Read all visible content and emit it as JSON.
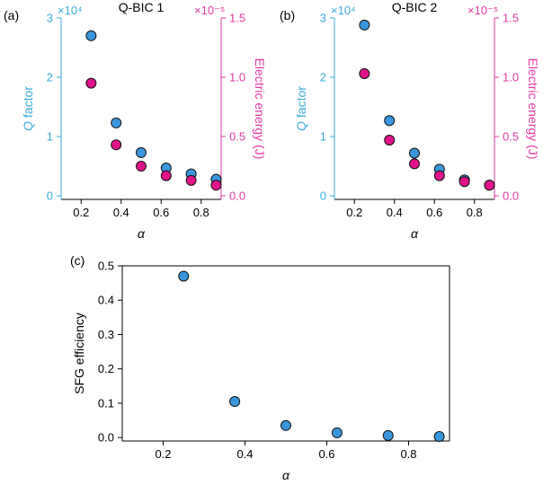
{
  "colors": {
    "q_axis": "#3aacdc",
    "q_marker": "#3a96dc",
    "e_axis": "#e23aa6",
    "e_marker": "#e0138a",
    "frame": "#000000"
  },
  "chart_data": [
    {
      "panel_label": "(a)",
      "type": "scatter",
      "title": "Q-BIC 1",
      "xlabel": "α",
      "xlim": [
        0.1,
        0.9
      ],
      "x_ticks": [
        0.2,
        0.4,
        0.6,
        0.8
      ],
      "x_tick_labels": [
        "0.2",
        "0.4",
        "0.6",
        "0.8"
      ],
      "left_axis": {
        "label_italic": "Q",
        "label_rest": " factor",
        "multiplier": "×10⁴",
        "ylim": [
          -0.06,
          3.0
        ],
        "ticks": [
          0,
          1,
          2,
          3
        ],
        "tick_labels": [
          "0",
          "1",
          "2",
          "3"
        ]
      },
      "right_axis": {
        "label": "Electric energy (J)",
        "multiplier": "×10⁻⁵",
        "ylim": [
          -0.03,
          1.5
        ],
        "ticks": [
          0.0,
          0.5,
          1.0,
          1.5
        ],
        "tick_labels": [
          "0.0",
          "0.5",
          "1.0",
          "1.5"
        ]
      },
      "series": [
        {
          "name": "Q factor",
          "axis": "left",
          "x": [
            0.25,
            0.375,
            0.5,
            0.625,
            0.75,
            0.875
          ],
          "y": [
            2.7,
            1.23,
            0.73,
            0.47,
            0.37,
            0.28
          ]
        },
        {
          "name": "Electric energy",
          "axis": "right",
          "x": [
            0.25,
            0.375,
            0.5,
            0.625,
            0.75,
            0.875
          ],
          "y": [
            0.95,
            0.43,
            0.25,
            0.17,
            0.13,
            0.09
          ]
        }
      ]
    },
    {
      "panel_label": "(b)",
      "type": "scatter",
      "title": "Q-BIC 2",
      "xlabel": "α",
      "xlim": [
        0.1,
        0.9
      ],
      "x_ticks": [
        0.2,
        0.4,
        0.6,
        0.8
      ],
      "x_tick_labels": [
        "0.2",
        "0.4",
        "0.6",
        "0.8"
      ],
      "left_axis": {
        "label_italic": "Q",
        "label_rest": " factor",
        "multiplier": "×10⁴",
        "ylim": [
          -0.06,
          3.0
        ],
        "ticks": [
          0,
          1,
          2,
          3
        ],
        "tick_labels": [
          "0",
          "1",
          "2",
          "3"
        ]
      },
      "right_axis": {
        "label": "Electric energy (J)",
        "multiplier": "×10⁻⁵",
        "ylim": [
          -0.03,
          1.5
        ],
        "ticks": [
          0.0,
          0.5,
          1.0,
          1.5
        ],
        "tick_labels": [
          "0.0",
          "0.5",
          "1.0",
          "1.5"
        ]
      },
      "series": [
        {
          "name": "Q factor",
          "axis": "left",
          "x": [
            0.25,
            0.375,
            0.5,
            0.625,
            0.75,
            0.875
          ],
          "y": [
            2.88,
            1.27,
            0.72,
            0.45,
            0.27,
            0.18
          ]
        },
        {
          "name": "Electric energy",
          "axis": "right",
          "x": [
            0.25,
            0.375,
            0.5,
            0.625,
            0.75,
            0.875
          ],
          "y": [
            1.03,
            0.47,
            0.27,
            0.17,
            0.12,
            0.09
          ]
        }
      ]
    },
    {
      "panel_label": "(c)",
      "type": "scatter",
      "title": "",
      "xlabel": "α",
      "xlim": [
        0.1,
        0.9
      ],
      "x_ticks": [
        0.2,
        0.4,
        0.6,
        0.8
      ],
      "x_tick_labels": [
        "0.2",
        "0.4",
        "0.6",
        "0.8"
      ],
      "left_axis": {
        "label": "SFG efficiency",
        "ylim": [
          -0.01,
          0.5
        ],
        "ticks": [
          0.0,
          0.1,
          0.2,
          0.3,
          0.4,
          0.5
        ],
        "tick_labels": [
          "0.0",
          "0.1",
          "0.2",
          "0.3",
          "0.4",
          "0.5"
        ]
      },
      "series": [
        {
          "name": "SFG efficiency",
          "axis": "left",
          "x": [
            0.25,
            0.375,
            0.5,
            0.625,
            0.75,
            0.875
          ],
          "y": [
            0.47,
            0.105,
            0.035,
            0.014,
            0.006,
            0.003
          ]
        }
      ]
    }
  ]
}
